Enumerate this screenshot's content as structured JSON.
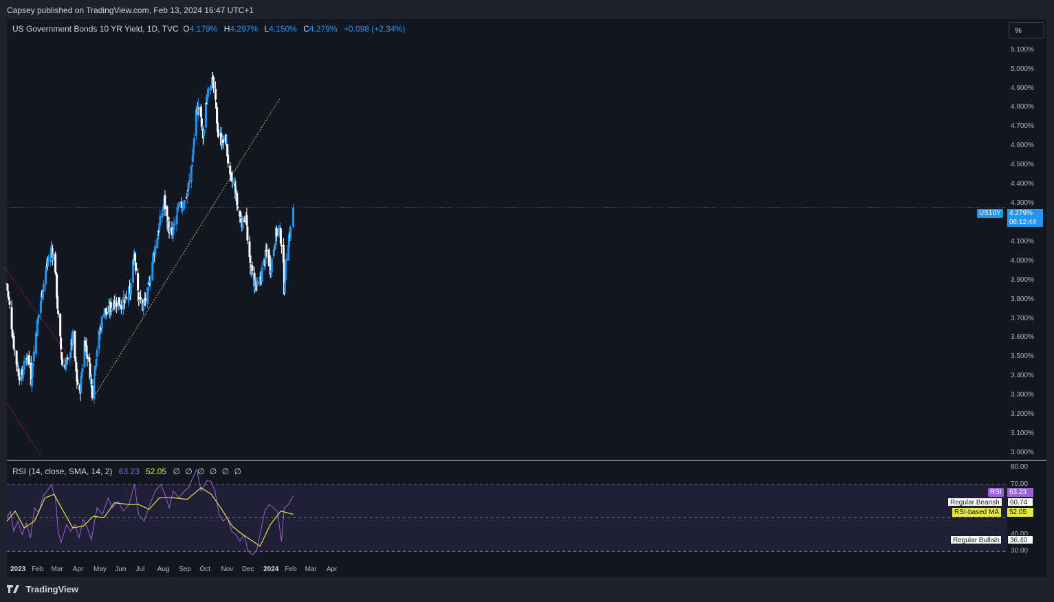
{
  "header": {
    "published": "Capsey published on TradingView.com, Feb 13, 2024 16:47 UTC+1"
  },
  "legend": {
    "symbol": "US Government Bonds 10 YR Yield, 1D, TVC",
    "o_label": "O",
    "o": "4.179%",
    "h_label": "H",
    "h": "4.297%",
    "l_label": "L",
    "l": "4.150%",
    "c_label": "C",
    "c": "4.279%",
    "change": "+0.098 (+2.34%)"
  },
  "scale_button": "%",
  "rsi_legend": {
    "label": "RSI (14, close, SMA, 14, 2)",
    "rsi_value": "63.23",
    "ma_value": "52.05",
    "na": [
      "∅",
      "∅",
      "∅",
      "∅",
      "∅",
      "∅"
    ]
  },
  "tags": {
    "symbol": "US10Y",
    "price": "4.279%",
    "countdown": "06:12:44",
    "rsi_name": "RSI",
    "rsi_val": "63.23",
    "bearish_name": "Regular Bearish",
    "bearish_val": "60.74",
    "ma_name": "RSI-based MA",
    "ma_val": "52.05",
    "bullish_name": "Regular Bullish",
    "bullish_val": "36.40"
  },
  "colors": {
    "up": "#2196f3",
    "down": "#ffffff",
    "rsi": "#9c62d6",
    "rsi_ma": "#e6e84a",
    "trend": "#c8c84a",
    "bear_line": "#c2185b",
    "bg": "#131722"
  },
  "footer": {
    "brand": "TradingView"
  },
  "chart_data": {
    "type": "candlestick",
    "title": "US Government Bonds 10 YR Yield, 1D, TVC",
    "y_ticks": [
      "5.100%",
      "5.000%",
      "4.900%",
      "4.800%",
      "4.700%",
      "4.600%",
      "4.500%",
      "4.400%",
      "4.300%",
      "4.200%",
      "4.100%",
      "4.000%",
      "3.900%",
      "3.800%",
      "3.700%",
      "3.600%",
      "3.500%",
      "3.400%",
      "3.300%",
      "3.200%",
      "3.100%",
      "3.000%"
    ],
    "ylim": [
      2.982,
      5.16
    ],
    "x_ticks": [
      {
        "label": "2023",
        "day": 0,
        "bold": true
      },
      {
        "label": "Feb",
        "day": 31
      },
      {
        "label": "Mar",
        "day": 59
      },
      {
        "label": "Apr",
        "day": 90
      },
      {
        "label": "May",
        "day": 120
      },
      {
        "label": "Jun",
        "day": 151
      },
      {
        "label": "Jul",
        "day": 181
      },
      {
        "label": "Aug",
        "day": 212
      },
      {
        "label": "Sep",
        "day": 243
      },
      {
        "label": "Oct",
        "day": 273
      },
      {
        "label": "Nov",
        "day": 304
      },
      {
        "label": "Dec",
        "day": 334
      },
      {
        "label": "2024",
        "day": 365,
        "bold": true
      },
      {
        "label": "Feb",
        "day": 396
      },
      {
        "label": "Mar",
        "day": 425
      },
      {
        "label": "Apr",
        "day": 456
      }
    ],
    "last_price": 4.279,
    "close_series": [
      {
        "day": 0,
        "v": 3.88
      },
      {
        "day": 6,
        "v": 3.7
      },
      {
        "day": 12,
        "v": 3.5
      },
      {
        "day": 20,
        "v": 3.38
      },
      {
        "day": 30,
        "v": 3.52
      },
      {
        "day": 35,
        "v": 3.38
      },
      {
        "day": 41,
        "v": 3.6
      },
      {
        "day": 50,
        "v": 3.82
      },
      {
        "day": 56,
        "v": 3.95
      },
      {
        "day": 65,
        "v": 4.07
      },
      {
        "day": 70,
        "v": 3.96
      },
      {
        "day": 74,
        "v": 3.7
      },
      {
        "day": 80,
        "v": 3.46
      },
      {
        "day": 88,
        "v": 3.47
      },
      {
        "day": 95,
        "v": 3.6
      },
      {
        "day": 101,
        "v": 3.38
      },
      {
        "day": 105,
        "v": 3.3
      },
      {
        "day": 112,
        "v": 3.58
      },
      {
        "day": 118,
        "v": 3.48
      },
      {
        "day": 123,
        "v": 3.32
      },
      {
        "day": 130,
        "v": 3.55
      },
      {
        "day": 140,
        "v": 3.75
      },
      {
        "day": 145,
        "v": 3.72
      },
      {
        "day": 154,
        "v": 3.79
      },
      {
        "day": 170,
        "v": 3.78
      },
      {
        "day": 178,
        "v": 3.84
      },
      {
        "day": 184,
        "v": 4.05
      },
      {
        "day": 190,
        "v": 3.82
      },
      {
        "day": 196,
        "v": 3.76
      },
      {
        "day": 203,
        "v": 3.83
      },
      {
        "day": 211,
        "v": 4.02
      },
      {
        "day": 218,
        "v": 4.15
      },
      {
        "day": 227,
        "v": 4.31
      },
      {
        "day": 232,
        "v": 4.2
      },
      {
        "day": 238,
        "v": 4.11
      },
      {
        "day": 246,
        "v": 4.26
      },
      {
        "day": 256,
        "v": 4.31
      },
      {
        "day": 262,
        "v": 4.38
      },
      {
        "day": 268,
        "v": 4.55
      },
      {
        "day": 273,
        "v": 4.78
      },
      {
        "day": 277,
        "v": 4.8
      },
      {
        "day": 283,
        "v": 4.65
      },
      {
        "day": 290,
        "v": 4.91
      },
      {
        "day": 295,
        "v": 4.95
      },
      {
        "day": 299,
        "v": 4.88
      },
      {
        "day": 305,
        "v": 4.66
      },
      {
        "day": 311,
        "v": 4.62
      },
      {
        "day": 316,
        "v": 4.63
      },
      {
        "day": 322,
        "v": 4.42
      },
      {
        "day": 328,
        "v": 4.4
      },
      {
        "day": 334,
        "v": 4.25
      },
      {
        "day": 340,
        "v": 4.2
      },
      {
        "day": 345,
        "v": 4.25
      },
      {
        "day": 348,
        "v": 4.02
      },
      {
        "day": 356,
        "v": 3.9
      },
      {
        "day": 363,
        "v": 3.85
      },
      {
        "day": 368,
        "v": 3.95
      },
      {
        "day": 375,
        "v": 4.05
      },
      {
        "day": 380,
        "v": 3.96
      },
      {
        "day": 388,
        "v": 4.14
      },
      {
        "day": 393,
        "v": 4.17
      },
      {
        "day": 398,
        "v": 4.05
      },
      {
        "day": 400,
        "v": 3.86
      },
      {
        "day": 404,
        "v": 4.09
      },
      {
        "day": 410,
        "v": 4.17
      },
      {
        "day": 413,
        "v": 4.279
      }
    ],
    "trendlines": [
      {
        "name": "support",
        "from": {
          "day": 126,
          "v": 3.295
        },
        "to": {
          "day": 394,
          "v": 4.85
        }
      },
      {
        "name": "resistance",
        "from": {
          "day": -4,
          "v": 3.97
        },
        "to": {
          "day": 100,
          "v": 3.45
        }
      }
    ],
    "rsi": {
      "levels": [
        70,
        50,
        30
      ],
      "y_ticks": [
        "80.00",
        "70.00",
        "40.00",
        "30.00"
      ],
      "ylim": [
        26,
        81
      ],
      "last": 63.23,
      "ma_last": 52.05,
      "bearish_level": 60.74,
      "bullish_level": 36.4,
      "ma_series": [
        {
          "day": 0,
          "v": 48
        },
        {
          "day": 12,
          "v": 54
        },
        {
          "day": 25,
          "v": 44
        },
        {
          "day": 40,
          "v": 48
        },
        {
          "day": 55,
          "v": 62
        },
        {
          "day": 68,
          "v": 64
        },
        {
          "day": 80,
          "v": 55
        },
        {
          "day": 95,
          "v": 44
        },
        {
          "day": 110,
          "v": 45
        },
        {
          "day": 125,
          "v": 51
        },
        {
          "day": 140,
          "v": 50
        },
        {
          "day": 155,
          "v": 59
        },
        {
          "day": 175,
          "v": 58
        },
        {
          "day": 190,
          "v": 58
        },
        {
          "day": 205,
          "v": 55
        },
        {
          "day": 220,
          "v": 62
        },
        {
          "day": 240,
          "v": 62
        },
        {
          "day": 260,
          "v": 61
        },
        {
          "day": 280,
          "v": 68
        },
        {
          "day": 295,
          "v": 64
        },
        {
          "day": 310,
          "v": 55
        },
        {
          "day": 325,
          "v": 45
        },
        {
          "day": 340,
          "v": 40
        },
        {
          "day": 355,
          "v": 36
        },
        {
          "day": 365,
          "v": 33
        },
        {
          "day": 380,
          "v": 46
        },
        {
          "day": 395,
          "v": 54
        },
        {
          "day": 405,
          "v": 53
        },
        {
          "day": 413,
          "v": 52.05
        }
      ],
      "series": [
        {
          "day": 0,
          "v": 50
        },
        {
          "day": 5,
          "v": 54
        },
        {
          "day": 10,
          "v": 42
        },
        {
          "day": 16,
          "v": 48
        },
        {
          "day": 22,
          "v": 40
        },
        {
          "day": 28,
          "v": 47
        },
        {
          "day": 34,
          "v": 38
        },
        {
          "day": 40,
          "v": 56
        },
        {
          "day": 46,
          "v": 53
        },
        {
          "day": 52,
          "v": 63
        },
        {
          "day": 58,
          "v": 66
        },
        {
          "day": 64,
          "v": 70
        },
        {
          "day": 70,
          "v": 62
        },
        {
          "day": 74,
          "v": 42
        },
        {
          "day": 78,
          "v": 35
        },
        {
          "day": 86,
          "v": 46
        },
        {
          "day": 92,
          "v": 42
        },
        {
          "day": 98,
          "v": 46
        },
        {
          "day": 104,
          "v": 38
        },
        {
          "day": 110,
          "v": 49
        },
        {
          "day": 116,
          "v": 44
        },
        {
          "day": 122,
          "v": 37
        },
        {
          "day": 130,
          "v": 56
        },
        {
          "day": 138,
          "v": 52
        },
        {
          "day": 146,
          "v": 62
        },
        {
          "day": 152,
          "v": 56
        },
        {
          "day": 160,
          "v": 60
        },
        {
          "day": 168,
          "v": 54
        },
        {
          "day": 176,
          "v": 58
        },
        {
          "day": 184,
          "v": 70
        },
        {
          "day": 190,
          "v": 52
        },
        {
          "day": 198,
          "v": 48
        },
        {
          "day": 206,
          "v": 58
        },
        {
          "day": 214,
          "v": 66
        },
        {
          "day": 222,
          "v": 70
        },
        {
          "day": 228,
          "v": 64
        },
        {
          "day": 234,
          "v": 56
        },
        {
          "day": 240,
          "v": 66
        },
        {
          "day": 248,
          "v": 62
        },
        {
          "day": 256,
          "v": 66
        },
        {
          "day": 262,
          "v": 68
        },
        {
          "day": 268,
          "v": 74
        },
        {
          "day": 274,
          "v": 79
        },
        {
          "day": 280,
          "v": 66
        },
        {
          "day": 288,
          "v": 72
        },
        {
          "day": 294,
          "v": 72
        },
        {
          "day": 300,
          "v": 66
        },
        {
          "day": 306,
          "v": 52
        },
        {
          "day": 312,
          "v": 48
        },
        {
          "day": 318,
          "v": 50
        },
        {
          "day": 324,
          "v": 42
        },
        {
          "day": 330,
          "v": 40
        },
        {
          "day": 336,
          "v": 36
        },
        {
          "day": 342,
          "v": 40
        },
        {
          "day": 348,
          "v": 30
        },
        {
          "day": 354,
          "v": 28
        },
        {
          "day": 360,
          "v": 30
        },
        {
          "day": 366,
          "v": 42
        },
        {
          "day": 372,
          "v": 54
        },
        {
          "day": 378,
          "v": 58
        },
        {
          "day": 384,
          "v": 56
        },
        {
          "day": 390,
          "v": 54
        },
        {
          "day": 396,
          "v": 36
        },
        {
          "day": 400,
          "v": 56
        },
        {
          "day": 406,
          "v": 58
        },
        {
          "day": 413,
          "v": 63.23
        }
      ]
    }
  }
}
